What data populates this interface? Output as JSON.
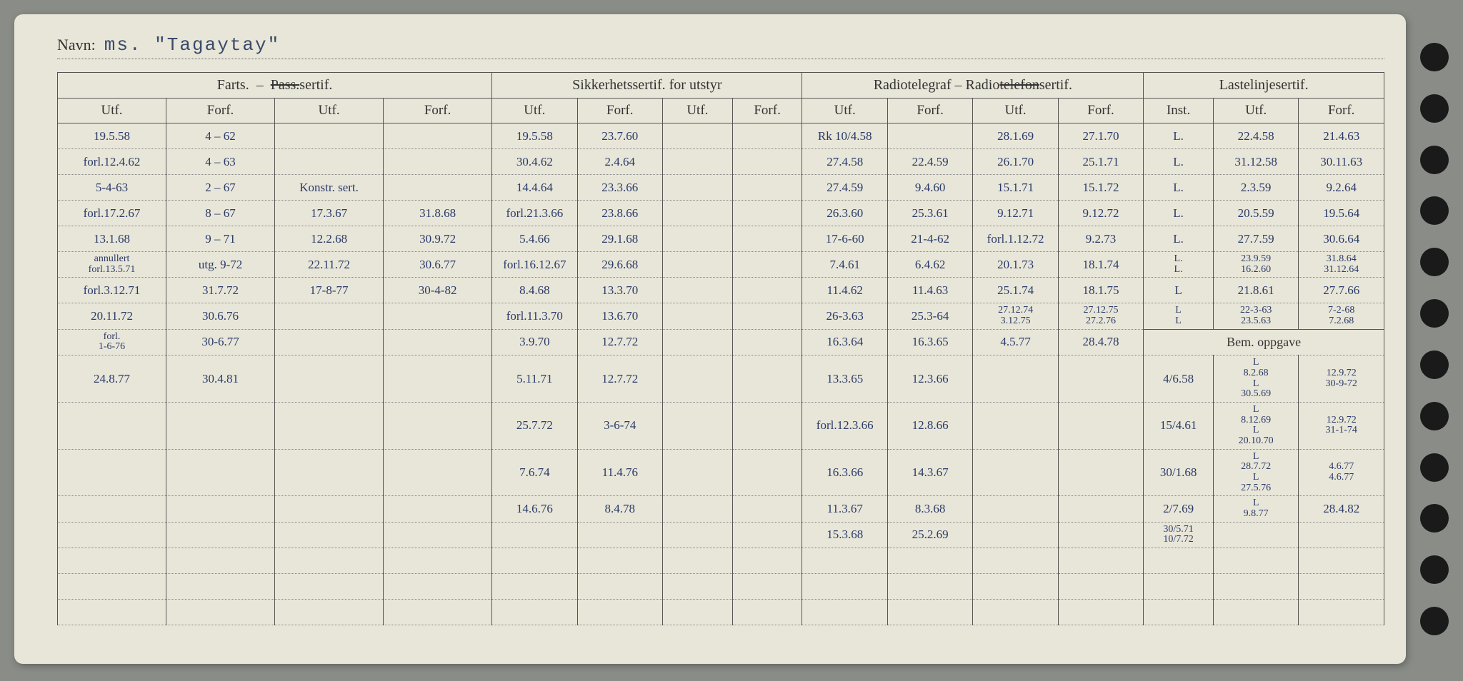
{
  "navn_label": "Navn:",
  "navn_value": "ms. \"Tagaytay\"",
  "sections": {
    "farts": "Farts. – Pass.sertif.",
    "sikkerhet": "Sikkerhetssertif. for utstyr",
    "radio": "Radiotelegraf – Radiotelefonsertif.",
    "laste": "Lastelinjesertif."
  },
  "sub": {
    "utf": "Utf.",
    "forf": "Forf.",
    "inst": "Inst."
  },
  "bem": "Bem. oppgave",
  "rows": [
    {
      "f1": "19.5.58",
      "f2": "4 – 62",
      "f3": "",
      "f4": "",
      "s1": "19.5.58",
      "s2": "23.7.60",
      "r1": "Rk 10/4.58",
      "r2": "",
      "r3": "28.1.69",
      "r4": "27.1.70",
      "l1": "L.",
      "l2": "22.4.58",
      "l3": "21.4.63"
    },
    {
      "f1": "forl.12.4.62",
      "f2": "4 – 63",
      "f3": "",
      "f4": "",
      "s1": "30.4.62",
      "s2": "2.4.64",
      "r1": "27.4.58",
      "r2": "22.4.59",
      "r3": "26.1.70",
      "r4": "25.1.71",
      "l1": "L.",
      "l2": "31.12.58",
      "l3": "30.11.63"
    },
    {
      "f1": "5-4-63",
      "f2": "2 – 67",
      "f3": "Konstr. sert.",
      "f4": "",
      "s1": "14.4.64",
      "s2": "23.3.66",
      "r1": "27.4.59",
      "r2": "9.4.60",
      "r3": "15.1.71",
      "r4": "15.1.72",
      "l1": "L.",
      "l2": "2.3.59",
      "l3": "9.2.64"
    },
    {
      "f1": "forl.17.2.67",
      "f2": "8 – 67",
      "f3": "17.3.67",
      "f4": "31.8.68",
      "s1": "forl.21.3.66",
      "s2": "23.8.66",
      "r1": "26.3.60",
      "r2": "25.3.61",
      "r3": "9.12.71",
      "r4": "9.12.72",
      "l1": "L.",
      "l2": "20.5.59",
      "l3": "19.5.64"
    },
    {
      "f1": "13.1.68",
      "f2": "9 – 71",
      "f3": "12.2.68",
      "f4": "30.9.72",
      "s1": "5.4.66",
      "s2": "29.1.68",
      "r1": "17-6-60",
      "r2": "21-4-62",
      "r3": "forl.1.12.72",
      "r4": "9.2.73",
      "l1": "L.",
      "l2": "27.7.59",
      "l3": "30.6.64"
    },
    {
      "f1": "annullert forl.13.5.71",
      "f2": "utg. 9-72",
      "f3": "22.11.72",
      "f4": "30.6.77",
      "s1": "forl.16.12.67",
      "s2": "29.6.68",
      "r1": "7.4.61",
      "r2": "6.4.62",
      "r3": "20.1.73",
      "r4": "18.1.74",
      "l1": "L. L.",
      "l2": "23.9.59 16.2.60",
      "l3": "31.8.64 31.12.64"
    },
    {
      "f1": "forl.3.12.71",
      "f2": "31.7.72",
      "f3": "17-8-77",
      "f4": "30-4-82",
      "s1": "8.4.68",
      "s2": "13.3.70",
      "r1": "11.4.62",
      "r2": "11.4.63",
      "r3": "25.1.74",
      "r4": "18.1.75",
      "l1": "L",
      "l2": "21.8.61",
      "l3": "27.7.66"
    },
    {
      "f1": "20.11.72",
      "f2": "30.6.76",
      "f3": "",
      "f4": "",
      "s1": "forl.11.3.70",
      "s2": "13.6.70",
      "r1": "26-3.63",
      "r2": "25.3-64",
      "r3": "27.12.74 3.12.75",
      "r4": "27.12.75 27.2.76",
      "l1": "L L",
      "l2": "22-3-63 23.5.63",
      "l3": "7-2-68 7.2.68"
    },
    {
      "f1": "forl. 1-6-76",
      "f2": "30-6.77",
      "f3": "",
      "f4": "",
      "s1": "3.9.70",
      "s2": "12.7.72",
      "r1": "16.3.64",
      "r2": "16.3.65",
      "r3": "4.5.77",
      "r4": "28.4.78",
      "l1": "",
      "l2": "",
      "l3": ""
    },
    {
      "f1": "24.8.77",
      "f2": "30.4.81",
      "f3": "",
      "f4": "",
      "s1": "5.11.71",
      "s2": "12.7.72",
      "r1": "13.3.65",
      "r2": "12.3.66",
      "r3": "",
      "r4": "",
      "l1": "4/6.58",
      "l2": "L 8.2.68 L 30.5.69",
      "l3": "12.9.72 30-9-72"
    },
    {
      "f1": "",
      "f2": "",
      "f3": "",
      "f4": "",
      "s1": "25.7.72",
      "s2": "3-6-74",
      "r1": "forl.12.3.66",
      "r2": "12.8.66",
      "r3": "",
      "r4": "",
      "l1": "15/4.61",
      "l2": "L 8.12.69 L 20.10.70",
      "l3": "12.9.72 31-1-74"
    },
    {
      "f1": "",
      "f2": "",
      "f3": "",
      "f4": "",
      "s1": "7.6.74",
      "s2": "11.4.76",
      "r1": "16.3.66",
      "r2": "14.3.67",
      "r3": "",
      "r4": "",
      "l1": "30/1.68",
      "l2": "L 28.7.72 L 27.5.76",
      "l3": "4.6.77 4.6.77"
    },
    {
      "f1": "",
      "f2": "",
      "f3": "",
      "f4": "",
      "s1": "14.6.76",
      "s2": "8.4.78",
      "r1": "11.3.67",
      "r2": "8.3.68",
      "r3": "",
      "r4": "",
      "l1": "2/7.69",
      "l2": "L 9.8.77",
      "l3": "28.4.82"
    },
    {
      "f1": "",
      "f2": "",
      "f3": "",
      "f4": "",
      "s1": "",
      "s2": "",
      "r1": "15.3.68",
      "r2": "25.2.69",
      "r3": "",
      "r4": "",
      "l1": "30/5.71 10/7.72",
      "l2": "",
      "l3": ""
    }
  ]
}
